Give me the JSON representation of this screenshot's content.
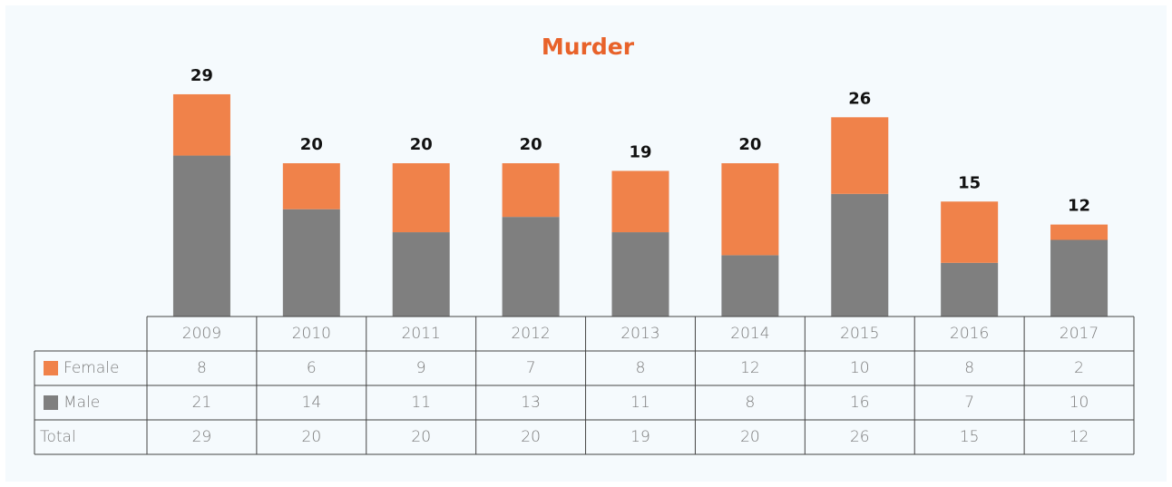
{
  "chart_data": {
    "type": "stacked_bar",
    "title": "Murder",
    "categories": [
      "2009",
      "2010",
      "2011",
      "2012",
      "2013",
      "2014",
      "2015",
      "2016",
      "2017"
    ],
    "series": [
      {
        "name": "Female",
        "color": "#f0824a",
        "values": [
          8,
          6,
          9,
          7,
          8,
          12,
          10,
          8,
          2
        ]
      },
      {
        "name": "Male",
        "color": "#7f7f7f",
        "values": [
          21,
          14,
          11,
          13,
          11,
          8,
          16,
          7,
          10
        ]
      }
    ],
    "total_label": "Total",
    "totals": [
      29,
      20,
      20,
      20,
      19,
      20,
      26,
      15,
      12
    ]
  }
}
